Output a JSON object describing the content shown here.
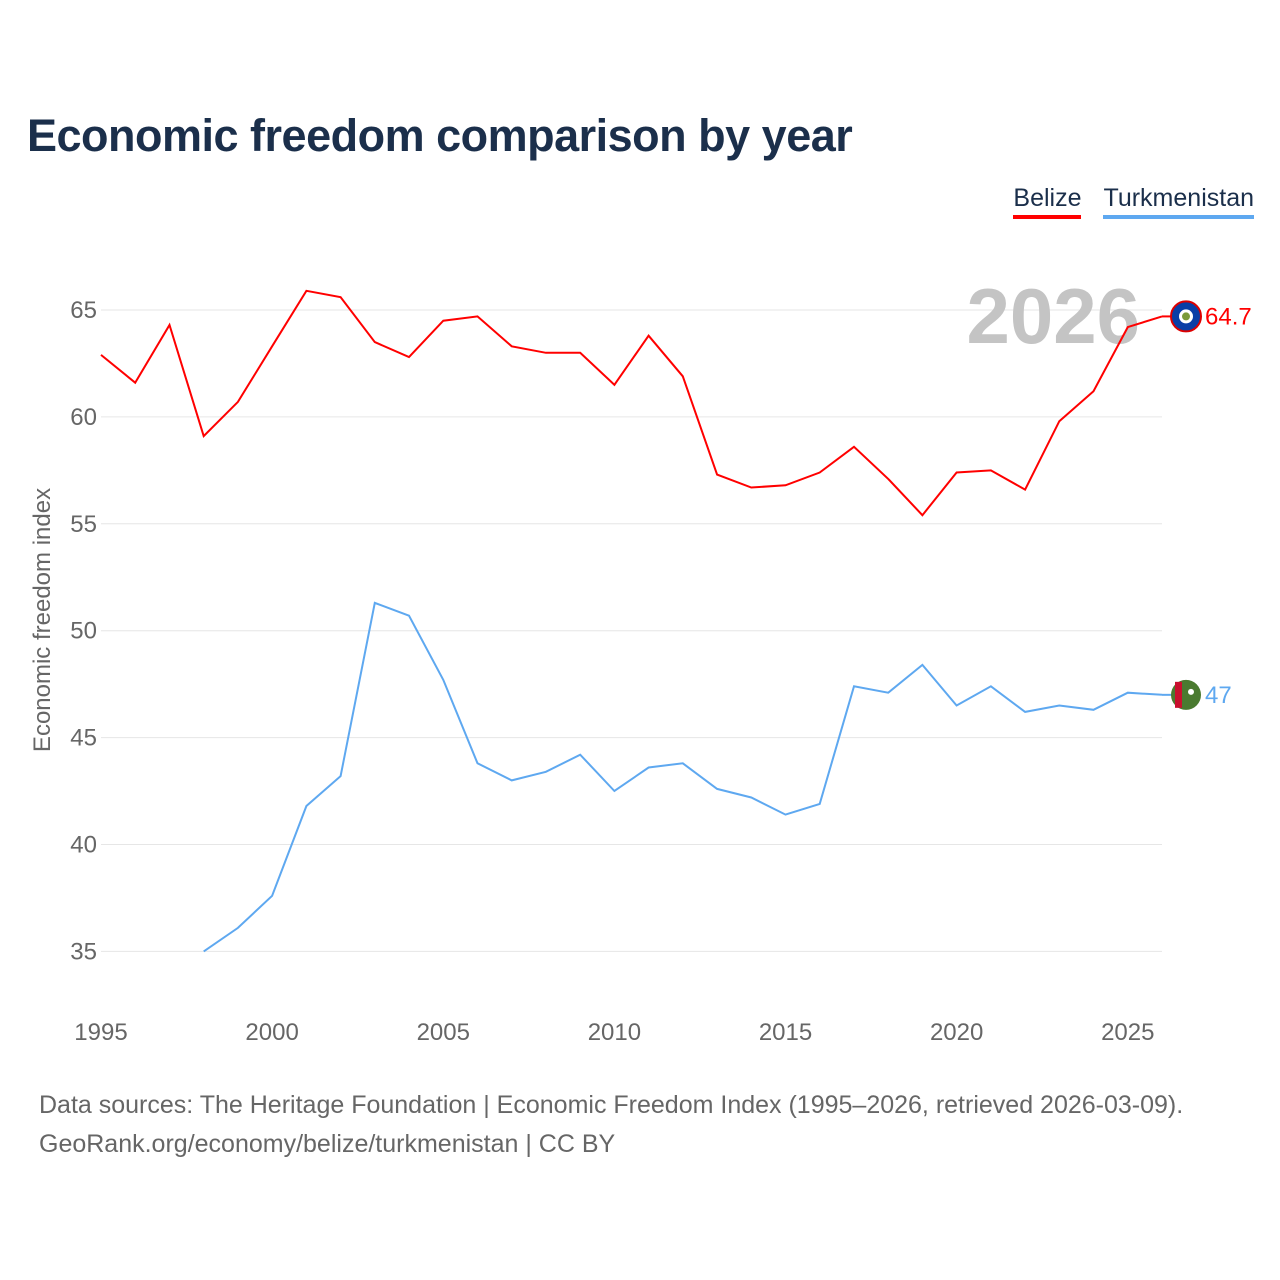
{
  "chart_data": {
    "type": "line",
    "title": "Economic freedom comparison by year",
    "xlabel": "",
    "ylabel": "Economic freedom index",
    "xlim": [
      1995,
      2026
    ],
    "ylim": [
      32.5,
      67.5
    ],
    "x_ticks": [
      1995,
      2000,
      2005,
      2010,
      2015,
      2020,
      2025
    ],
    "y_ticks": [
      35,
      40,
      45,
      50,
      55,
      60,
      65
    ],
    "grid": true,
    "legend_position": "top-right",
    "year_annotation": "2026",
    "series": [
      {
        "name": "Belize",
        "color": "#ff0000",
        "end_label": "64.7",
        "x": [
          1995,
          1996,
          1997,
          1998,
          1999,
          2000,
          2001,
          2002,
          2003,
          2004,
          2005,
          2006,
          2007,
          2008,
          2009,
          2010,
          2011,
          2012,
          2013,
          2014,
          2015,
          2016,
          2017,
          2018,
          2019,
          2020,
          2021,
          2022,
          2023,
          2024,
          2025,
          2026
        ],
        "values": [
          62.9,
          61.6,
          64.3,
          59.1,
          60.7,
          63.3,
          65.9,
          65.6,
          63.5,
          62.8,
          64.5,
          64.7,
          63.3,
          63.0,
          63.0,
          61.5,
          63.8,
          61.9,
          57.3,
          56.7,
          56.8,
          57.4,
          58.6,
          57.1,
          55.4,
          57.4,
          57.5,
          56.6,
          59.8,
          61.2,
          64.2,
          64.7
        ]
      },
      {
        "name": "Turkmenistan",
        "color": "#5ea8f0",
        "end_label": "47",
        "x": [
          1998,
          1999,
          2000,
          2001,
          2002,
          2003,
          2004,
          2005,
          2006,
          2007,
          2008,
          2009,
          2010,
          2011,
          2012,
          2013,
          2014,
          2015,
          2016,
          2017,
          2018,
          2019,
          2020,
          2021,
          2022,
          2023,
          2024,
          2025,
          2026
        ],
        "values": [
          35.0,
          36.1,
          37.6,
          41.8,
          43.2,
          51.3,
          50.7,
          47.7,
          43.8,
          43.0,
          43.4,
          44.2,
          42.5,
          43.6,
          43.8,
          42.6,
          42.2,
          41.4,
          41.9,
          47.4,
          47.1,
          48.4,
          46.5,
          47.4,
          46.2,
          46.5,
          46.3,
          47.1,
          47.0
        ]
      }
    ]
  },
  "source": {
    "line1": "Data sources: The Heritage Foundation | Economic Freedom Index (1995–2026, retrieved 2026-03-09).",
    "line2": "GeoRank.org/economy/belize/turkmenistan | CC BY"
  }
}
